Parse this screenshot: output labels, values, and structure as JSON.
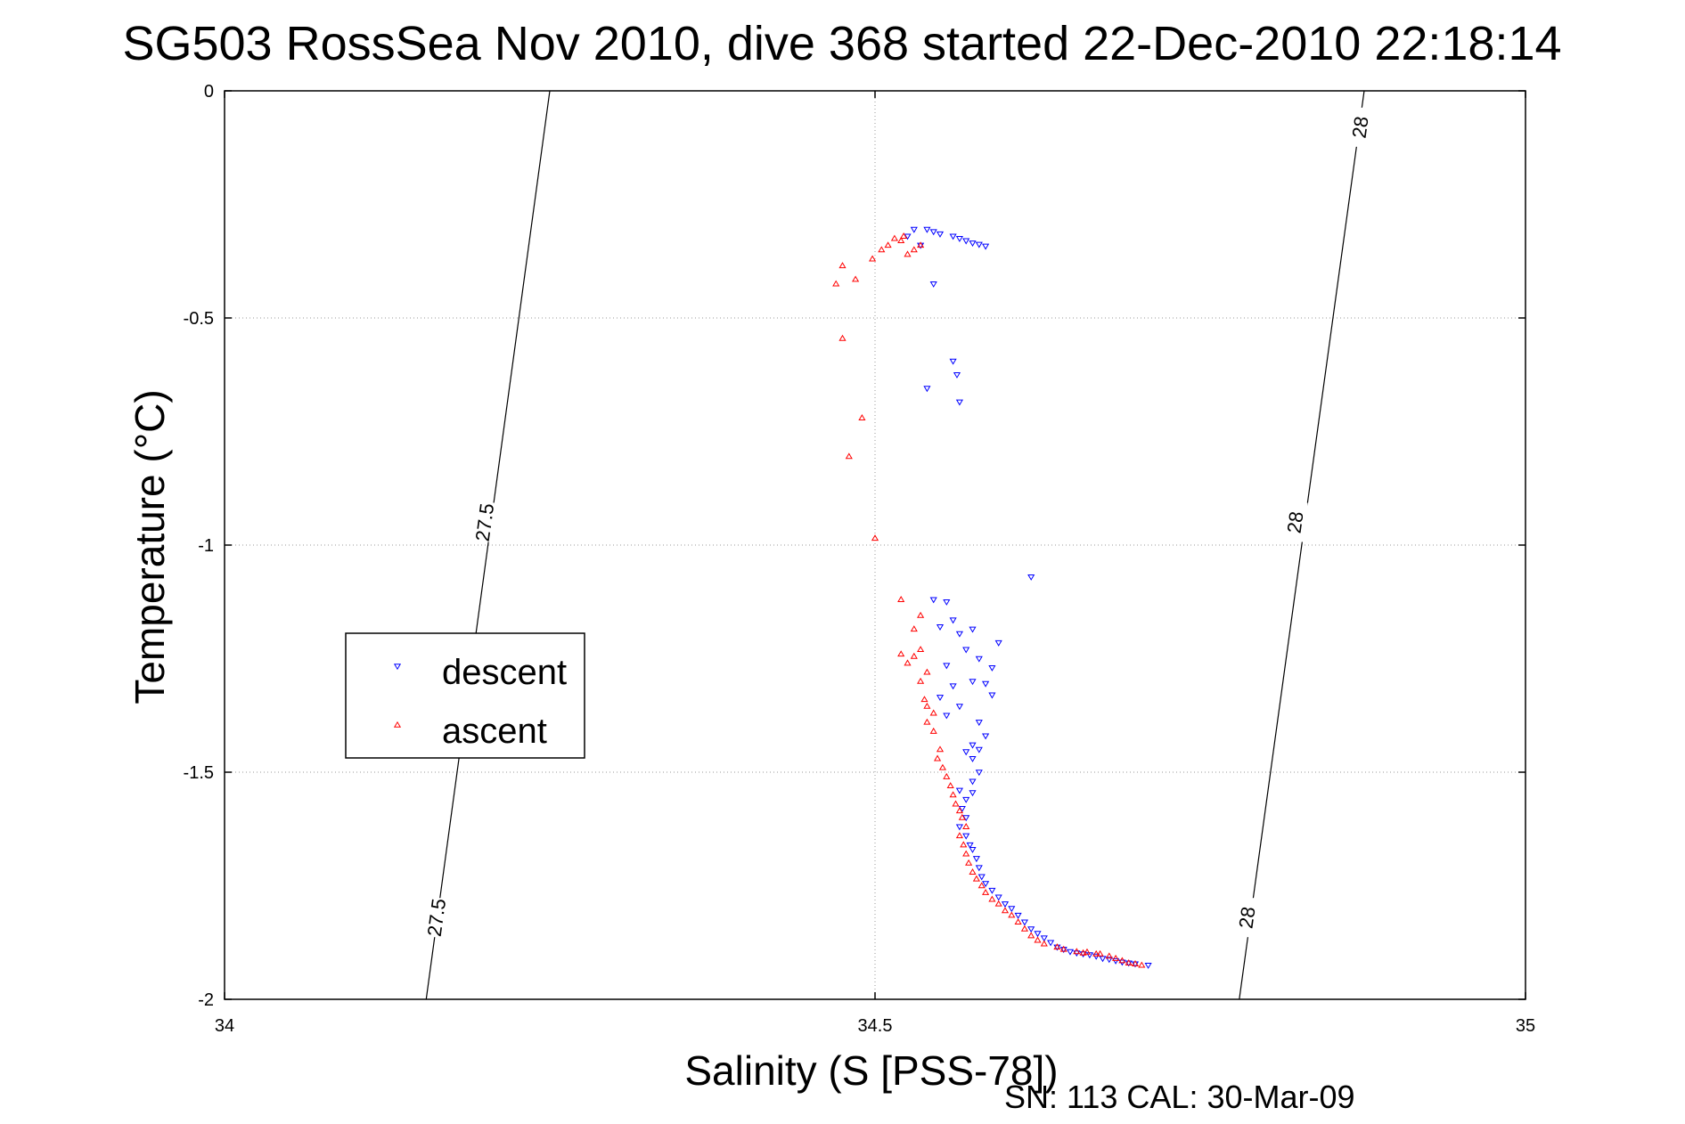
{
  "chart_data": {
    "type": "scatter",
    "title": "SG503 RossSea Nov 2010, dive 368 started 22-Dec-2010 22:18:14",
    "xlabel": "Salinity (S [PSS-78])",
    "ylabel": "Temperature (°C)",
    "xlim": [
      34,
      35
    ],
    "ylim": [
      -2,
      0
    ],
    "xticks": [
      "34",
      "34.5",
      "35"
    ],
    "yticks": [
      "0",
      "-0.5",
      "-1",
      "-1.5",
      "-2"
    ],
    "grid": true,
    "legend": {
      "placement": "middle-left"
    },
    "annotation": "SN: 113  CAL: 30-Mar-09",
    "isopycnals": [
      {
        "label": "27.5",
        "points": [
          [
            34.25,
            0
          ],
          [
            34.155,
            -2
          ]
        ],
        "labels": [
          {
            "s": 34.2,
            "t": -0.95
          },
          {
            "s": 34.163,
            "t": -1.82
          }
        ]
      },
      {
        "label": "28",
        "points": [
          [
            34.876,
            0
          ],
          [
            34.78,
            -2
          ]
        ],
        "labels": [
          {
            "s": 34.873,
            "t": -0.08
          },
          {
            "s": 34.823,
            "t": -0.95
          },
          {
            "s": 34.786,
            "t": -1.82
          }
        ]
      }
    ],
    "series": [
      {
        "name": "descent",
        "color": "#0000ff",
        "marker": "triangle-down",
        "points": [
          [
            34.53,
            -0.305
          ],
          [
            34.54,
            -0.305
          ],
          [
            34.545,
            -0.31
          ],
          [
            34.55,
            -0.315
          ],
          [
            34.56,
            -0.32
          ],
          [
            34.565,
            -0.325
          ],
          [
            34.57,
            -0.33
          ],
          [
            34.575,
            -0.335
          ],
          [
            34.58,
            -0.338
          ],
          [
            34.585,
            -0.342
          ],
          [
            34.525,
            -0.32
          ],
          [
            34.535,
            -0.34
          ],
          [
            34.545,
            -0.425
          ],
          [
            34.56,
            -0.595
          ],
          [
            34.563,
            -0.625
          ],
          [
            34.54,
            -0.655
          ],
          [
            34.565,
            -0.685
          ],
          [
            34.62,
            -1.07
          ],
          [
            34.545,
            -1.12
          ],
          [
            34.555,
            -1.125
          ],
          [
            34.56,
            -1.165
          ],
          [
            34.575,
            -1.185
          ],
          [
            34.55,
            -1.18
          ],
          [
            34.565,
            -1.195
          ],
          [
            34.595,
            -1.215
          ],
          [
            34.57,
            -1.23
          ],
          [
            34.58,
            -1.25
          ],
          [
            34.59,
            -1.27
          ],
          [
            34.555,
            -1.265
          ],
          [
            34.575,
            -1.3
          ],
          [
            34.585,
            -1.305
          ],
          [
            34.56,
            -1.31
          ],
          [
            34.59,
            -1.33
          ],
          [
            34.55,
            -1.335
          ],
          [
            34.565,
            -1.355
          ],
          [
            34.555,
            -1.375
          ],
          [
            34.58,
            -1.39
          ],
          [
            34.585,
            -1.42
          ],
          [
            34.575,
            -1.44
          ],
          [
            34.58,
            -1.45
          ],
          [
            34.57,
            -1.455
          ],
          [
            34.575,
            -1.47
          ],
          [
            34.58,
            -1.5
          ],
          [
            34.575,
            -1.52
          ],
          [
            34.565,
            -1.54
          ],
          [
            34.57,
            -1.56
          ],
          [
            34.575,
            -1.545
          ],
          [
            34.567,
            -1.58
          ],
          [
            34.57,
            -1.6
          ],
          [
            34.565,
            -1.62
          ],
          [
            34.57,
            -1.64
          ],
          [
            34.573,
            -1.66
          ],
          [
            34.575,
            -1.67
          ],
          [
            34.578,
            -1.69
          ],
          [
            34.58,
            -1.71
          ],
          [
            34.582,
            -1.73
          ],
          [
            34.585,
            -1.745
          ],
          [
            34.59,
            -1.76
          ],
          [
            34.595,
            -1.775
          ],
          [
            34.6,
            -1.79
          ],
          [
            34.605,
            -1.8
          ],
          [
            34.61,
            -1.815
          ],
          [
            34.615,
            -1.83
          ],
          [
            34.62,
            -1.845
          ],
          [
            34.625,
            -1.855
          ],
          [
            34.63,
            -1.865
          ],
          [
            34.635,
            -1.875
          ],
          [
            34.64,
            -1.885
          ],
          [
            34.645,
            -1.89
          ],
          [
            34.65,
            -1.895
          ],
          [
            34.655,
            -1.898
          ],
          [
            34.66,
            -1.9
          ],
          [
            34.665,
            -1.902
          ],
          [
            34.67,
            -1.905
          ],
          [
            34.675,
            -1.91
          ],
          [
            34.68,
            -1.912
          ],
          [
            34.685,
            -1.915
          ],
          [
            34.69,
            -1.918
          ],
          [
            34.695,
            -1.92
          ],
          [
            34.7,
            -1.922
          ],
          [
            34.71,
            -1.925
          ]
        ]
      },
      {
        "name": "ascent",
        "color": "#ff0000",
        "marker": "triangle-up",
        "points": [
          [
            34.47,
            -0.425
          ],
          [
            34.475,
            -0.385
          ],
          [
            34.485,
            -0.415
          ],
          [
            34.498,
            -0.37
          ],
          [
            34.505,
            -0.35
          ],
          [
            34.51,
            -0.34
          ],
          [
            34.515,
            -0.325
          ],
          [
            34.52,
            -0.33
          ],
          [
            34.525,
            -0.36
          ],
          [
            34.53,
            -0.35
          ],
          [
            34.535,
            -0.34
          ],
          [
            34.522,
            -0.32
          ],
          [
            34.475,
            -0.545
          ],
          [
            34.49,
            -0.72
          ],
          [
            34.48,
            -0.805
          ],
          [
            34.5,
            -0.985
          ],
          [
            34.52,
            -1.12
          ],
          [
            34.535,
            -1.155
          ],
          [
            34.53,
            -1.185
          ],
          [
            34.535,
            -1.23
          ],
          [
            34.53,
            -1.245
          ],
          [
            34.525,
            -1.26
          ],
          [
            34.52,
            -1.24
          ],
          [
            34.54,
            -1.28
          ],
          [
            34.535,
            -1.3
          ],
          [
            34.538,
            -1.34
          ],
          [
            34.54,
            -1.355
          ],
          [
            34.545,
            -1.37
          ],
          [
            34.54,
            -1.39
          ],
          [
            34.545,
            -1.41
          ],
          [
            34.55,
            -1.45
          ],
          [
            34.548,
            -1.47
          ],
          [
            34.552,
            -1.49
          ],
          [
            34.555,
            -1.51
          ],
          [
            34.558,
            -1.53
          ],
          [
            34.56,
            -1.55
          ],
          [
            34.562,
            -1.57
          ],
          [
            34.565,
            -1.585
          ],
          [
            34.567,
            -1.6
          ],
          [
            34.57,
            -1.62
          ],
          [
            34.565,
            -1.64
          ],
          [
            34.568,
            -1.66
          ],
          [
            34.57,
            -1.68
          ],
          [
            34.572,
            -1.7
          ],
          [
            34.575,
            -1.72
          ],
          [
            34.578,
            -1.735
          ],
          [
            34.582,
            -1.75
          ],
          [
            34.585,
            -1.765
          ],
          [
            34.59,
            -1.78
          ],
          [
            34.595,
            -1.79
          ],
          [
            34.6,
            -1.805
          ],
          [
            34.605,
            -1.815
          ],
          [
            34.61,
            -1.83
          ],
          [
            34.615,
            -1.845
          ],
          [
            34.62,
            -1.86
          ],
          [
            34.625,
            -1.87
          ],
          [
            34.63,
            -1.878
          ],
          [
            34.64,
            -1.885
          ],
          [
            34.645,
            -1.89
          ],
          [
            34.655,
            -1.895
          ],
          [
            34.66,
            -1.898
          ],
          [
            34.67,
            -1.9
          ],
          [
            34.68,
            -1.905
          ],
          [
            34.685,
            -1.91
          ],
          [
            34.69,
            -1.915
          ],
          [
            34.695,
            -1.92
          ],
          [
            34.7,
            -1.922
          ],
          [
            34.705,
            -1.925
          ],
          [
            34.673,
            -1.9
          ],
          [
            34.663,
            -1.896
          ]
        ]
      }
    ]
  }
}
